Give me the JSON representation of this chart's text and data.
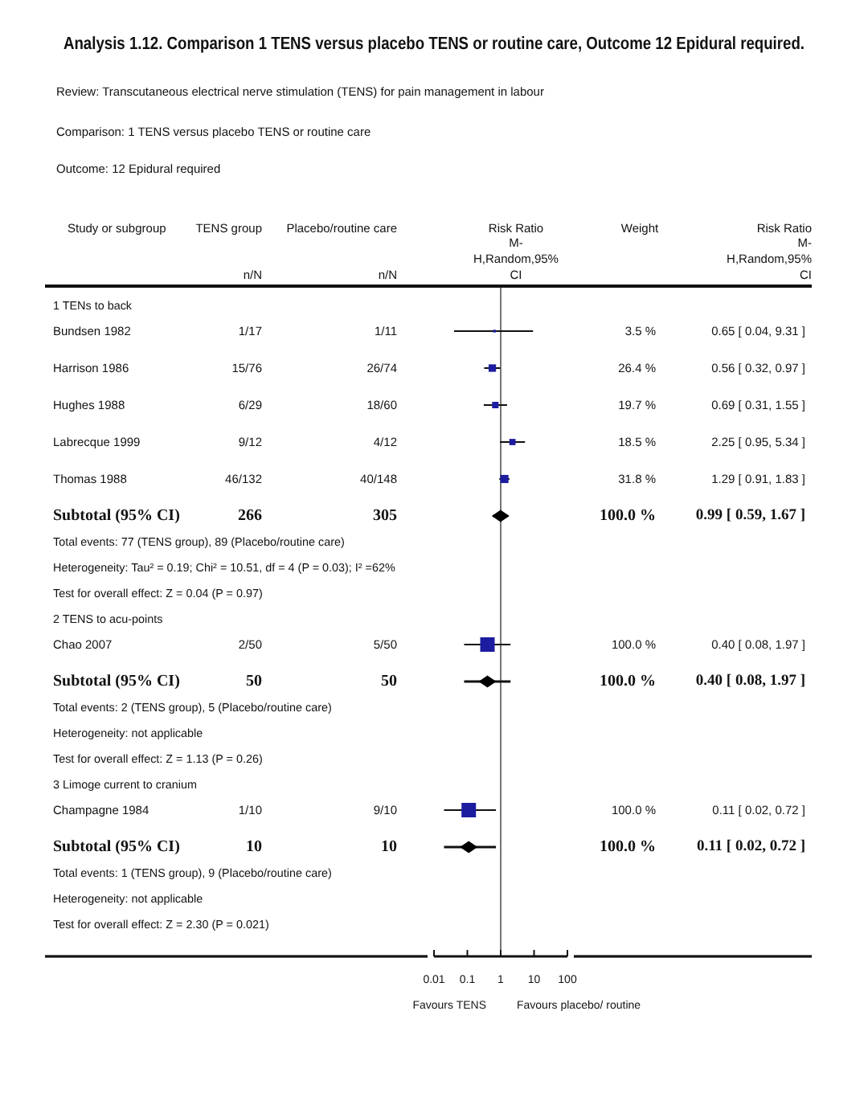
{
  "chart_data": {
    "type": "scatter",
    "title": "Analysis 1.12. Comparison 1 TENS versus placebo TENS or routine care, Outcome 12 Epidural required.",
    "annotations": [
      "Review: Transcutaneous electrical nerve stimulation (TENS) for pain management in labour",
      "Comparison: 1 TENS versus placebo TENS or routine care",
      "Outcome: 12 Epidural required",
      "Study or subgroup",
      "TENS group",
      "n/N",
      "Placebo/routine care",
      "n/N",
      "Risk Ratio",
      "M-",
      "H,Random,95%",
      "CI",
      "Weight",
      "Risk Ratio",
      "M-",
      "H,Random,95%",
      "CI",
      "Favours TENS",
      "Favours placebo/ routine",
      "1/17",
      "1/11",
      "3.5 %",
      "15/76",
      "26/74",
      "26.4 %",
      "6/29",
      "18/60",
      "19.7 %",
      "9/12",
      "4/12",
      "18.5 %",
      "46/132",
      "40/148",
      "31.8 %",
      "266",
      "305",
      "100.0 %",
      "0.99 [ 0.59, 1.67 ]",
      "2/50",
      "5/50",
      "100.0 %",
      "50",
      "50",
      "100.0 %",
      "0.40 [ 0.08, 1.97 ]",
      "1/10",
      "9/10",
      "100.0 %",
      "10",
      "10",
      "100.0 %",
      "0.11 [ 0.02, 0.72 ]"
    ],
    "categories": [
      "1 TENs to back",
      "Bundsen 1982",
      "Harrison 1986",
      "Hughes 1988",
      "Labrecque 1999",
      "Thomas 1988",
      "Subtotal (95% CI)",
      "Total events: 77 (TENS group), 89 (Placebo/routine care)",
      "Heterogeneity: Tau² = 0.19; Chi² = 10.51, df = 4 (P = 0.03); I² =62%",
      "Test for overall effect: Z = 0.04 (P = 0.97)",
      "2 TENS to acu-points",
      "Chao 2007",
      "Subtotal (95% CI)",
      "Total events: 2 (TENS group), 5 (Placebo/routine care)",
      "Heterogeneity: not applicable",
      "Test for overall effect: Z = 1.13 (P = 0.26)",
      "3 Limoge current to cranium",
      "Champagne 1984",
      "Subtotal (95% CI)",
      "Total events: 1 (TENS group), 9 (Placebo/routine care)",
      "Heterogeneity: not applicable",
      "Test for overall effect: Z = 2.30 (P = 0.021)"
    ],
    "series": [
      {
        "type": "scatter",
        "marker": "square",
        "color": "#1c1ca0",
        "values": [
          null,
          0.65,
          0.56,
          0.69,
          2.25,
          1.29,
          null,
          null,
          null,
          null,
          null,
          0.4,
          null,
          null,
          null,
          null,
          null,
          0.11,
          null,
          null,
          null,
          null
        ],
        "errors": [
          null,
          [
            0.04,
            9.31
          ],
          [
            0.32,
            0.97
          ],
          [
            0.31,
            1.55
          ],
          [
            0.95,
            5.34
          ],
          [
            0.91,
            1.83
          ],
          null,
          null,
          null,
          null,
          null,
          [
            0.08,
            1.97
          ],
          null,
          null,
          null,
          null,
          null,
          [
            0.02,
            0.72
          ],
          null,
          null,
          null,
          null
        ],
        "sizes": [
          null,
          0.035,
          0.264,
          0.197,
          0.185,
          0.318,
          null,
          null,
          null,
          null,
          null,
          1,
          null,
          null,
          null,
          null,
          null,
          1,
          null,
          null,
          null,
          null
        ],
        "value_labels": [
          null,
          "0.65 [ 0.04, 9.31 ]",
          "0.56 [ 0.32, 0.97 ]",
          "0.69 [ 0.31, 1.55 ]",
          "2.25 [ 0.95, 5.34 ]",
          "1.29 [ 0.91, 1.83 ]",
          null,
          null,
          null,
          null,
          null,
          "0.40 [ 0.08, 1.97 ]",
          null,
          null,
          null,
          null,
          null,
          "0.11 [ 0.02, 0.72 ]",
          null,
          null,
          null,
          null
        ]
      },
      {
        "type": "scatter",
        "marker": "diamond",
        "color": "#000000",
        "values": [
          null,
          null,
          null,
          null,
          null,
          null,
          0.99,
          null,
          null,
          null,
          null,
          null,
          0.4,
          null,
          null,
          null,
          null,
          null,
          0.11,
          null,
          null,
          null
        ],
        "errors": [
          null,
          null,
          null,
          null,
          null,
          null,
          [
            0.59,
            1.67
          ],
          null,
          null,
          null,
          null,
          null,
          [
            0.08,
            1.97
          ],
          null,
          null,
          null,
          null,
          null,
          [
            0.02,
            0.72
          ],
          null,
          null,
          null
        ]
      }
    ],
    "orientation": "horizontal",
    "log": "x",
    "xlim": [
      0.01,
      100
    ],
    "xticks": [
      0.01,
      0.1,
      1,
      10,
      100
    ],
    "ref_lines": [
      {
        "axis": "x",
        "value": 1
      }
    ]
  }
}
